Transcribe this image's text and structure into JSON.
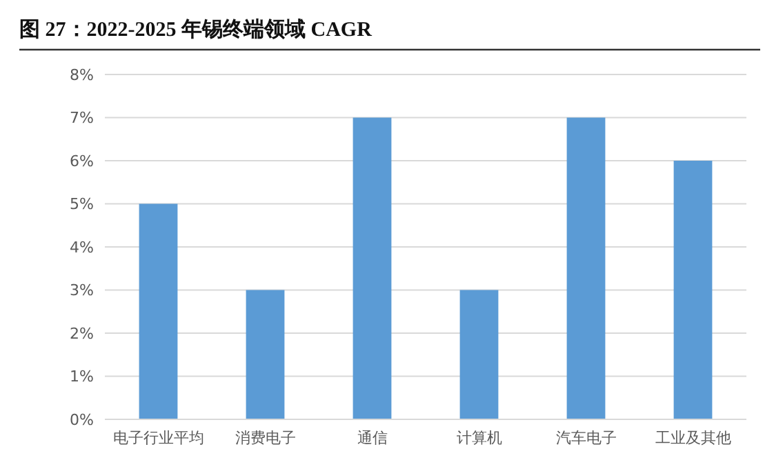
{
  "chart_data": {
    "type": "bar",
    "title": "图 27：2022-2025 年锡终端领域 CAGR",
    "categories": [
      "电子行业平均",
      "消费电子",
      "通信",
      "计算机",
      "汽车电子",
      "工业及其他"
    ],
    "values": [
      5,
      3,
      7,
      3,
      7,
      6
    ],
    "color": "#5b9bd5",
    "ylim": [
      0,
      8
    ],
    "yticks": [
      {
        "value": 0,
        "label": "0%"
      },
      {
        "value": 1,
        "label": "1%"
      },
      {
        "value": 2,
        "label": "2%"
      },
      {
        "value": 3,
        "label": "3%"
      },
      {
        "value": 4,
        "label": "4%"
      },
      {
        "value": 5,
        "label": "5%"
      },
      {
        "value": 6,
        "label": "6%"
      },
      {
        "value": 7,
        "label": "7%"
      },
      {
        "value": 8,
        "label": "8%"
      }
    ],
    "grid": "y"
  }
}
